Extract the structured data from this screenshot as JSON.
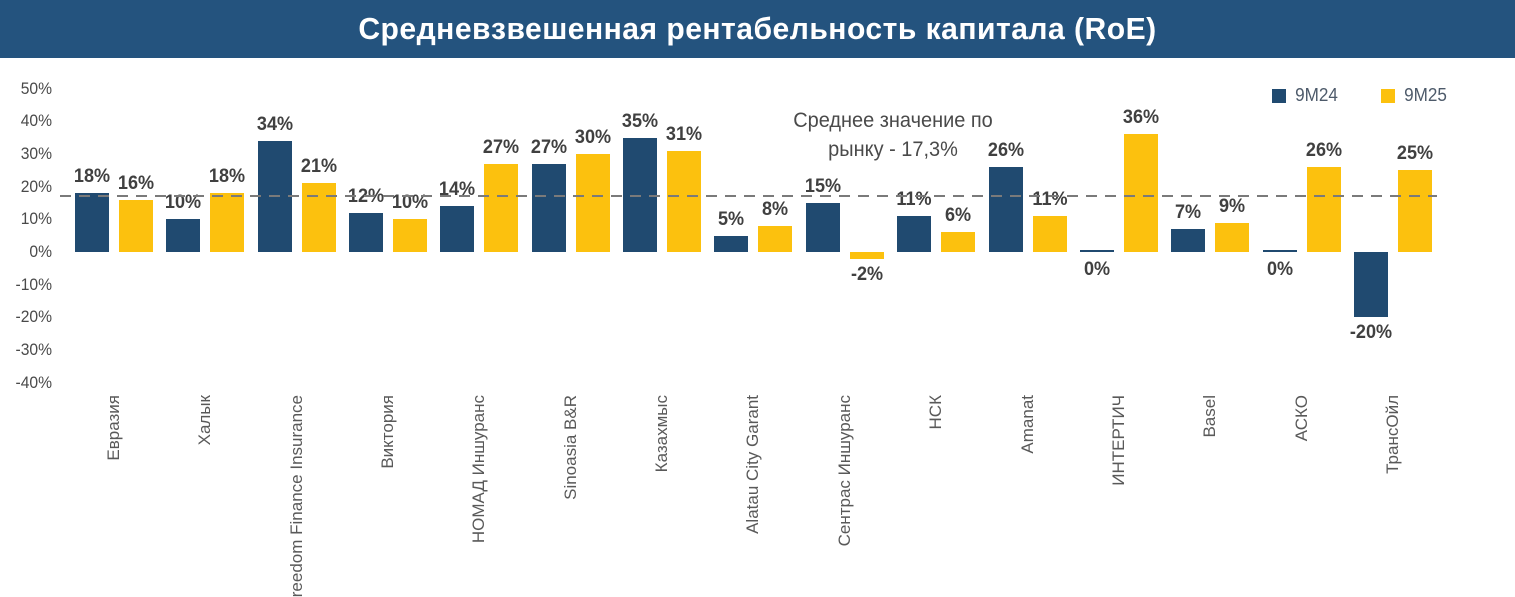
{
  "header": {
    "title": "Средневзвешенная рентабельность капитала (RoE)",
    "bg_color": "#24537E",
    "text_color": "#FFFFFF"
  },
  "legend": {
    "items": [
      {
        "label": "9M24",
        "color": "#204A70"
      },
      {
        "label": "9M25",
        "color": "#FCC10E"
      }
    ]
  },
  "annotation": {
    "line1": "Среднее значение по",
    "line2": "рынку - 17,3%"
  },
  "chart_data": {
    "type": "bar",
    "title": "Средневзвешенная рентабельность капитала (RoE)",
    "xlabel": "",
    "ylabel": "",
    "ylim": [
      -40,
      50
    ],
    "ytick_step": 10,
    "ytick_labels": [
      "50%",
      "40%",
      "30%",
      "20%",
      "10%",
      "0%",
      "-10%",
      "-20%",
      "-30%",
      "-40%"
    ],
    "grid": false,
    "legend_position": "top-right",
    "value_label_format": "percent",
    "categories": [
      "Евразия",
      "Халык",
      "Freedom Finance Insurance",
      "Виктория",
      "НОМАД Иншуранс",
      "Sinoasia B&R",
      "Казахмыс",
      "Alatau City Garant",
      "Сентрас Иншуранс",
      "НСК",
      "Amanat",
      "ИНТЕРТИЧ",
      "Basel",
      "АСКО",
      "ТрансОйл"
    ],
    "series": [
      {
        "name": "9M24",
        "color": "#204A70",
        "values": [
          18,
          10,
          34,
          12,
          14,
          27,
          35,
          5,
          15,
          11,
          26,
          0,
          7,
          0,
          -20
        ]
      },
      {
        "name": "9M25",
        "color": "#FCC10E",
        "values": [
          16,
          18,
          21,
          10,
          27,
          30,
          31,
          8,
          -2,
          6,
          11,
          36,
          9,
          26,
          25
        ]
      }
    ],
    "mean_line": {
      "value": 17.3,
      "style": "dashed",
      "color": "#7A7A7A",
      "label": "Среднее значение по рынку - 17,3%"
    }
  },
  "colors": {
    "data_label": "#404040",
    "y_tick": "#4A4A4A",
    "x_label": "#595959",
    "annotation": "#4A4A4A",
    "background": "#FFFFFF"
  }
}
